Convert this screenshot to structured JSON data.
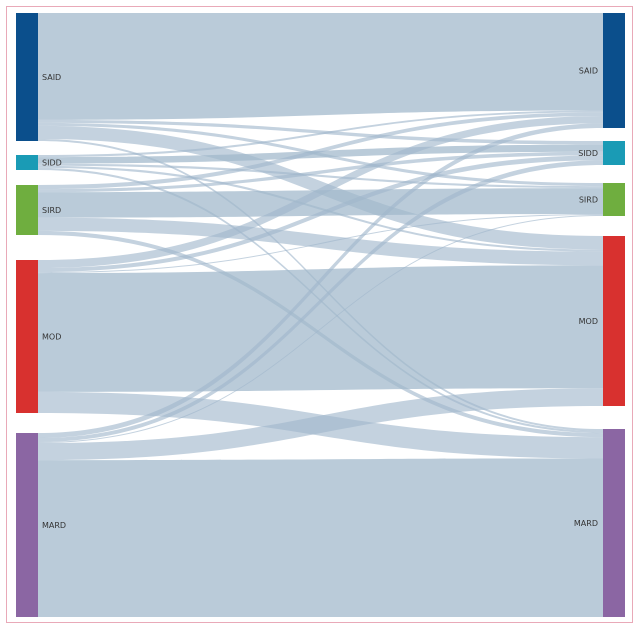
{
  "diagram": {
    "type": "sankey",
    "left_nodes": [
      {
        "id": "L_SAID",
        "label": "SAID",
        "color": "#0b4f8c"
      },
      {
        "id": "L_SIDD",
        "label": "SIDD",
        "color": "#1a9bb5"
      },
      {
        "id": "L_SIRD",
        "label": "SIRD",
        "color": "#6fae3f"
      },
      {
        "id": "L_MOD",
        "label": "MOD",
        "color": "#d8312f"
      },
      {
        "id": "L_MARD",
        "label": "MARD",
        "color": "#8b66a3"
      }
    ],
    "right_nodes": [
      {
        "id": "R_SAID",
        "label": "SAID",
        "color": "#0b4f8c"
      },
      {
        "id": "R_SIDD",
        "label": "SIDD",
        "color": "#1a9bb5"
      },
      {
        "id": "R_SIRD",
        "label": "SIRD",
        "color": "#6fae3f"
      },
      {
        "id": "R_MOD",
        "label": "MOD",
        "color": "#d8312f"
      },
      {
        "id": "R_MARD",
        "label": "MARD",
        "color": "#8b66a3"
      }
    ],
    "link_color": "#9fb7cb",
    "flows": [
      {
        "from": "SAID",
        "to": "SAID",
        "value": 106
      },
      {
        "from": "SAID",
        "to": "SIDD",
        "value": 3
      },
      {
        "from": "SAID",
        "to": "SIRD",
        "value": 3
      },
      {
        "from": "SAID",
        "to": "MOD",
        "value": 13
      },
      {
        "from": "SAID",
        "to": "MARD",
        "value": 2
      },
      {
        "from": "SIDD",
        "to": "SAID",
        "value": 2
      },
      {
        "from": "SIDD",
        "to": "SIDD",
        "value": 6
      },
      {
        "from": "SIDD",
        "to": "SIRD",
        "value": 2
      },
      {
        "from": "SIDD",
        "to": "MOD",
        "value": 2
      },
      {
        "from": "SIDD",
        "to": "MARD",
        "value": 2
      },
      {
        "from": "SIRD",
        "to": "SAID",
        "value": 4
      },
      {
        "from": "SIRD",
        "to": "SIDD",
        "value": 3
      },
      {
        "from": "SIRD",
        "to": "SIRD",
        "value": 25
      },
      {
        "from": "SIRD",
        "to": "MOD",
        "value": 13
      },
      {
        "from": "SIRD",
        "to": "MARD",
        "value": 4
      },
      {
        "from": "MOD",
        "to": "SAID",
        "value": 8
      },
      {
        "from": "MOD",
        "to": "SIDD",
        "value": 4
      },
      {
        "from": "MOD",
        "to": "SIRD",
        "value": 1
      },
      {
        "from": "MOD",
        "to": "MOD",
        "value": 118
      },
      {
        "from": "MOD",
        "to": "MARD",
        "value": 21
      },
      {
        "from": "MARD",
        "to": "SAID",
        "value": 5
      },
      {
        "from": "MARD",
        "to": "SIDD",
        "value": 4
      },
      {
        "from": "MARD",
        "to": "SIRD",
        "value": 1
      },
      {
        "from": "MARD",
        "to": "MOD",
        "value": 17
      },
      {
        "from": "MARD",
        "to": "MARD",
        "value": 156
      }
    ]
  }
}
